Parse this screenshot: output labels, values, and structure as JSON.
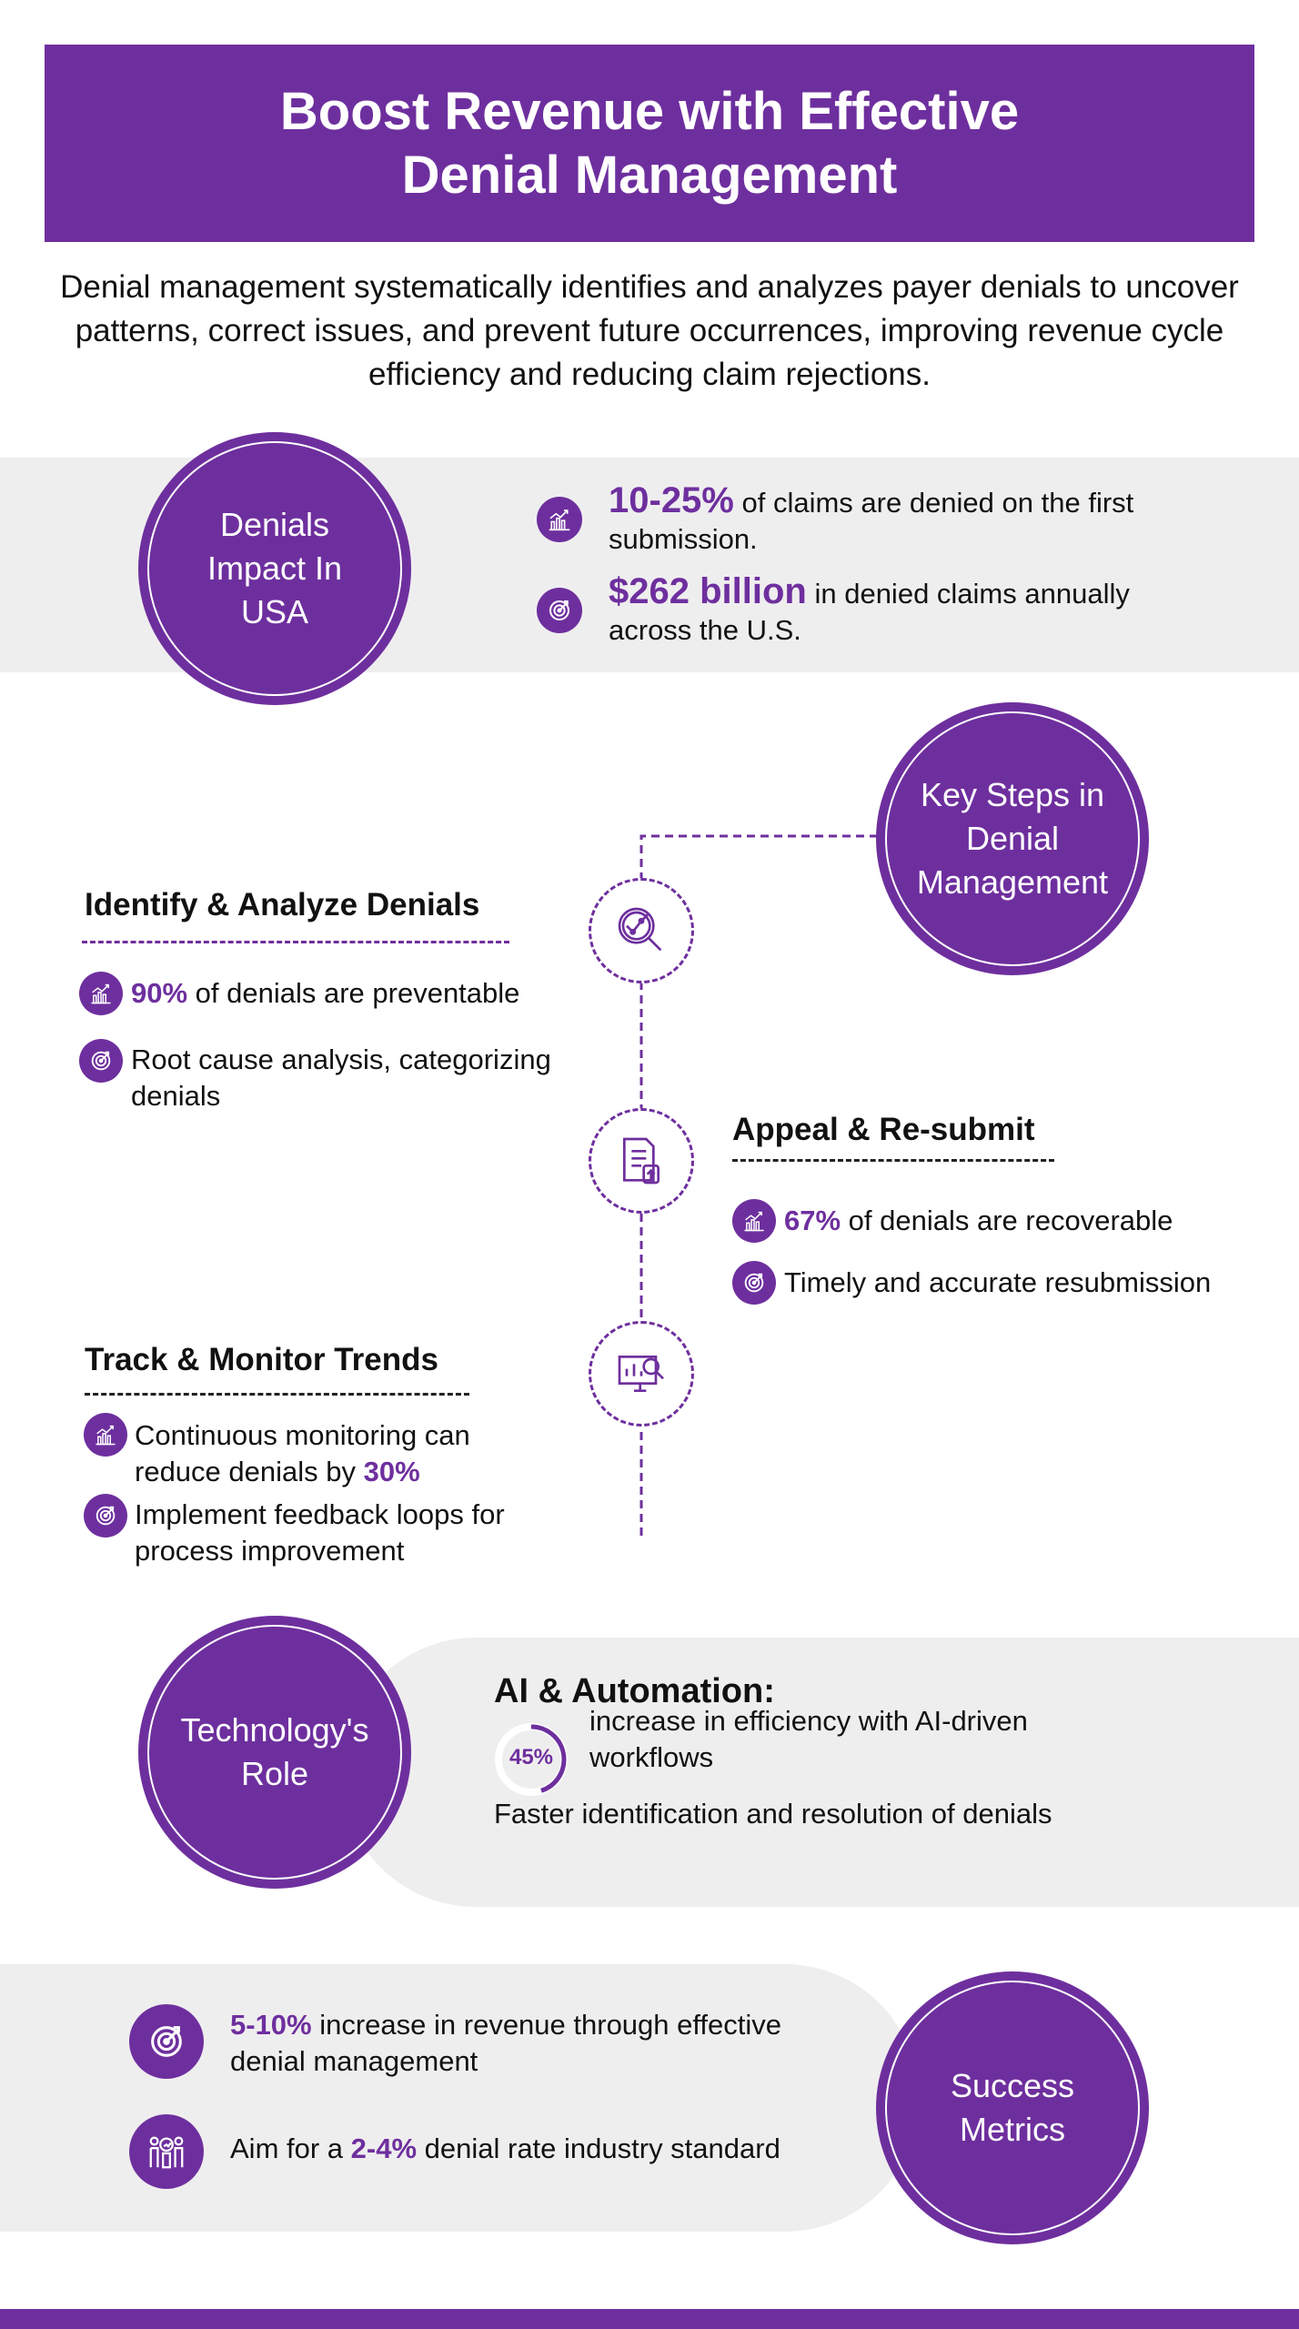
{
  "colors": {
    "accent": "#6e2f9e",
    "band": "#efeeef"
  },
  "header": {
    "title_line1": "Boost Revenue with Effective",
    "title_line2": "Denial Management"
  },
  "intro": "Denial management systematically identifies and analyzes payer denials to uncover patterns, correct issues, and prevent future occurrences, improving revenue cycle efficiency and reducing claim rejections.",
  "impact": {
    "circle_label": "Denials Impact In USA",
    "items": [
      {
        "icon": "chart-growth-icon",
        "highlight": "10-25%",
        "text": " of claims are denied on the first submission."
      },
      {
        "icon": "target-icon",
        "highlight": "$262 billion",
        "text": " in denied claims annually across the U.S."
      }
    ]
  },
  "steps": {
    "circle_label": "Key Steps in Denial Management",
    "identify": {
      "heading": "Identify & Analyze Denials",
      "icon": "magnifier-analytics-icon",
      "items": [
        {
          "icon": "chart-growth-icon",
          "highlight": "90%",
          "text": " of denials are preventable"
        },
        {
          "icon": "target-icon",
          "text": "Root cause analysis, categorizing denials"
        }
      ]
    },
    "appeal": {
      "heading": "Appeal & Re-submit",
      "icon": "document-upload-icon",
      "items": [
        {
          "icon": "chart-growth-icon",
          "highlight": "67%",
          "text": " of denials are recoverable"
        },
        {
          "icon": "target-icon",
          "text": "Timely and accurate resubmission"
        }
      ]
    },
    "track": {
      "heading": "Track & Monitor Trends",
      "icon": "monitor-analytics-icon",
      "items": [
        {
          "icon": "chart-growth-icon",
          "text": "Continuous monitoring can reduce denials by ",
          "highlight": "30%"
        },
        {
          "icon": "target-icon",
          "text": "Implement feedback loops for process improvement"
        }
      ]
    }
  },
  "technology": {
    "circle_label": "Technology's Role",
    "heading": "AI & Automation:",
    "ring_value": "45%",
    "ring_fraction": 0.45,
    "ring_text": "increase in efficiency with AI-driven workflows",
    "extra": "Faster identification and resolution of denials"
  },
  "success": {
    "circle_label": "Success Metrics",
    "items": [
      {
        "icon": "target-arrow-icon",
        "highlight": "5-10%",
        "text": " increase in revenue through effective denial management"
      },
      {
        "icon": "team-icon",
        "prefix": "Aim for a ",
        "highlight": "2-4%",
        "text": " denial rate industry standard"
      }
    ]
  }
}
